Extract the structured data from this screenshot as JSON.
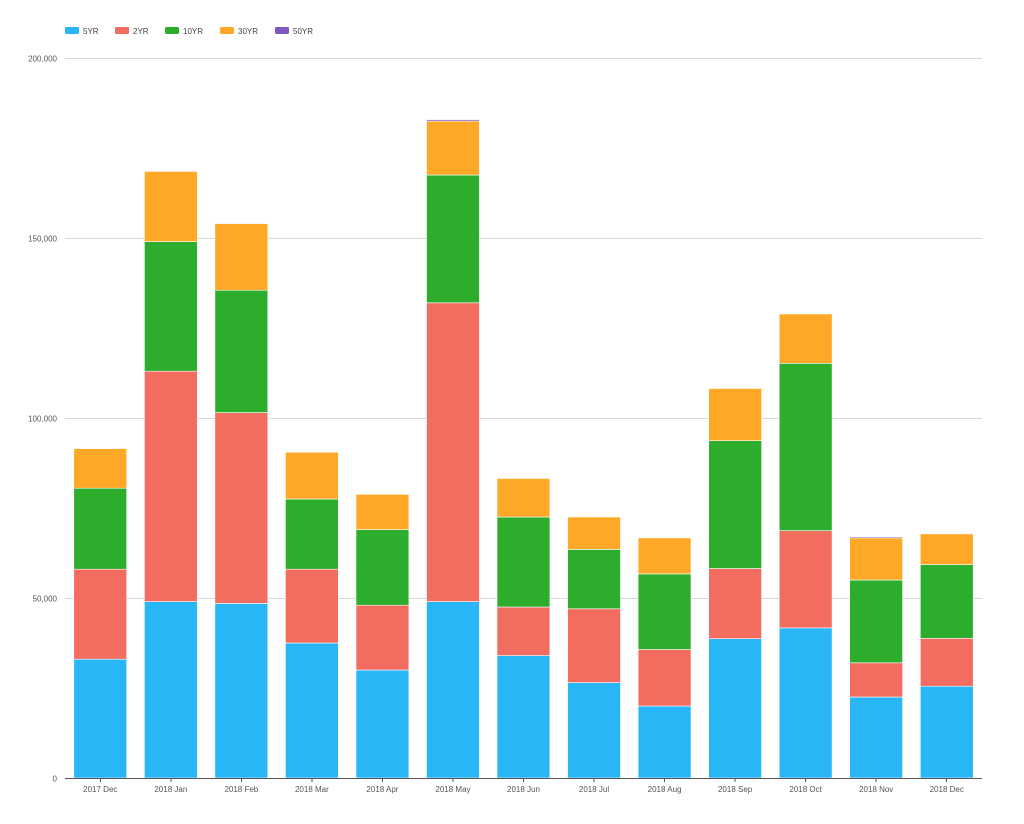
{
  "chart_data": {
    "type": "bar",
    "stacked": true,
    "categories": [
      "2017 Dec",
      "2018 Jan",
      "2018 Feb",
      "2018 Mar",
      "2018 Apr",
      "2018 May",
      "2018 Jun",
      "2018 Jul",
      "2018 Aug",
      "2018 Sep",
      "2018 Oct",
      "2018 Nov",
      "2018 Dec"
    ],
    "series": [
      {
        "name": "5YR",
        "color": "#29b6f6",
        "values": [
          33000,
          49000,
          48500,
          37500,
          30000,
          49000,
          34000,
          26500,
          20000,
          38700,
          41700,
          22500,
          25500
        ]
      },
      {
        "name": "2YR",
        "color": "#f26c5f",
        "values": [
          25000,
          64000,
          53000,
          20500,
          18000,
          83000,
          13500,
          20500,
          15700,
          19500,
          27000,
          9500,
          13300
        ]
      },
      {
        "name": "10YR",
        "color": "#2cad2c",
        "values": [
          22500,
          36000,
          34000,
          19500,
          21000,
          35500,
          25000,
          16500,
          21000,
          35500,
          46500,
          23000,
          20500
        ]
      },
      {
        "name": "30YR",
        "color": "#ffa726",
        "values": [
          11000,
          19500,
          18500,
          13000,
          9800,
          15000,
          10700,
          9000,
          10000,
          14500,
          13700,
          11700,
          8500
        ]
      },
      {
        "name": "50YR",
        "color": "#7e57c2",
        "values": [
          0,
          0,
          0,
          0,
          0,
          400,
          0,
          0,
          0,
          0,
          0,
          300,
          0
        ]
      }
    ],
    "yticks": [
      "0",
      "50,000",
      "100,000",
      "150,000",
      "200,000"
    ],
    "ylim": [
      0,
      200000
    ],
    "grid": true,
    "legend_position": "top-left",
    "title": "",
    "xlabel": "",
    "ylabel": ""
  }
}
